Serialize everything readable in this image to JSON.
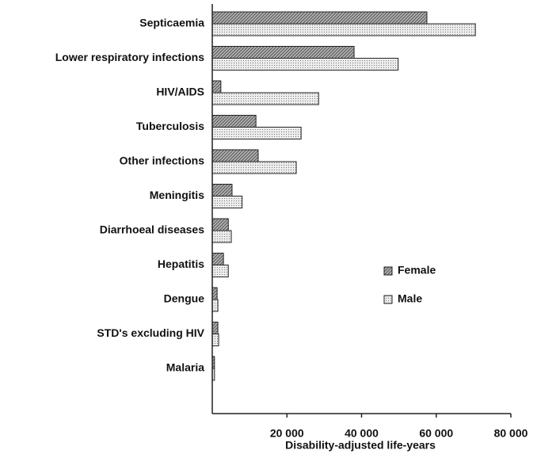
{
  "chart_data": {
    "type": "bar",
    "orientation": "horizontal",
    "x_label": "Disability-adjusted life-years",
    "categories": [
      "Septicaemia",
      "Lower respiratory infections",
      "HIV/AIDS",
      "Tuberculosis",
      "Other infections",
      "Meningitis",
      "Diarrhoeal diseases",
      "Hepatitis",
      "Dengue",
      "STD's excluding HIV",
      "Malaria"
    ],
    "series": [
      {
        "name": "Female",
        "color": "#b0b0b0",
        "values": [
          57500,
          38000,
          2300,
          11700,
          12300,
          5300,
          4300,
          3000,
          1300,
          1500,
          600
        ]
      },
      {
        "name": "Male",
        "color": "#ececec",
        "values": [
          70500,
          49800,
          28500,
          23800,
          22500,
          8000,
          5100,
          4300,
          1500,
          1700,
          600
        ]
      }
    ],
    "xlim": [
      0,
      80000
    ],
    "xticks": [
      {
        "value": 20000,
        "label": "20 000"
      },
      {
        "value": 40000,
        "label": "40 000"
      },
      {
        "value": 60000,
        "label": "60 000"
      },
      {
        "value": 80000,
        "label": "80 000"
      }
    ],
    "legend": "lower right"
  }
}
